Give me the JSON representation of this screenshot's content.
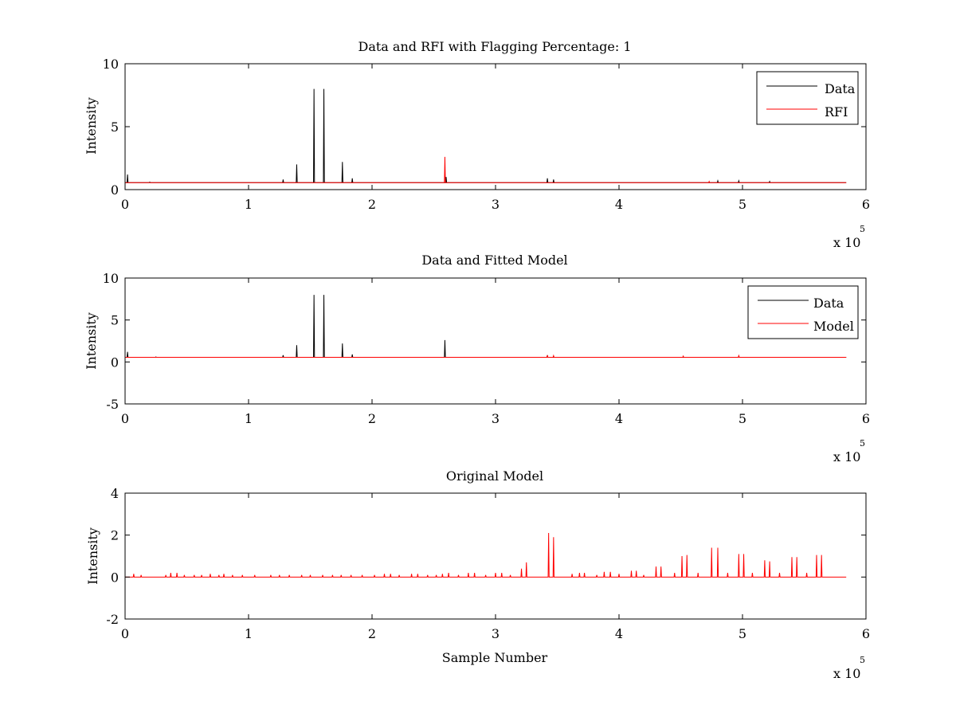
{
  "chart_data": [
    {
      "type": "line",
      "title": "Data and RFI with Flagging Percentage: 1",
      "xlabel": "",
      "ylabel": "Intensity",
      "xlim": [
        0,
        6
      ],
      "ylim": [
        0,
        10
      ],
      "xticks": [
        0,
        1,
        2,
        3,
        4,
        5,
        6
      ],
      "yticks": [
        0,
        5,
        10
      ],
      "x_exponent": {
        "base": "x 10",
        "power": "5"
      },
      "legend_position": "top-right",
      "grid": false,
      "baseline": 0.55,
      "x_end": 5.84,
      "series": [
        {
          "name": "Data",
          "color": "#000000",
          "spikes": [
            [
              0.02,
              1.2
            ],
            [
              0.2,
              0.6
            ],
            [
              0.25,
              0.55
            ],
            [
              1.28,
              0.8
            ],
            [
              1.39,
              2.0
            ],
            [
              1.53,
              8.0
            ],
            [
              1.61,
              8.0
            ],
            [
              1.76,
              2.2
            ],
            [
              1.84,
              0.9
            ],
            [
              2.6,
              1.0
            ],
            [
              3.42,
              0.9
            ],
            [
              3.47,
              0.8
            ],
            [
              4.8,
              0.7
            ],
            [
              4.97,
              0.7
            ],
            [
              5.22,
              0.65
            ]
          ]
        },
        {
          "name": "RFI",
          "color": "#ff0000",
          "spikes": [
            [
              2.59,
              2.6
            ],
            [
              4.73,
              0.65
            ]
          ]
        }
      ]
    },
    {
      "type": "line",
      "title": "Data and Fitted Model",
      "xlabel": "",
      "ylabel": "Intensity",
      "xlim": [
        0,
        6
      ],
      "ylim": [
        -5,
        10
      ],
      "xticks": [
        0,
        1,
        2,
        3,
        4,
        5,
        6
      ],
      "yticks": [
        -5,
        0,
        5,
        10
      ],
      "x_exponent": {
        "base": "x 10",
        "power": "5"
      },
      "legend_position": "top-right",
      "grid": false,
      "baseline": 0.55,
      "x_end": 5.84,
      "series": [
        {
          "name": "Data",
          "color": "#000000",
          "spikes": [
            [
              0.02,
              1.2
            ],
            [
              0.25,
              0.6
            ],
            [
              1.28,
              0.8
            ],
            [
              1.39,
              2.0
            ],
            [
              1.53,
              8.0
            ],
            [
              1.61,
              8.0
            ],
            [
              1.76,
              2.2
            ],
            [
              1.84,
              0.9
            ],
            [
              2.59,
              2.6
            ],
            [
              3.42,
              0.8
            ],
            [
              4.97,
              0.7
            ]
          ]
        },
        {
          "name": "Model",
          "color": "#ff0000",
          "spikes": [
            [
              3.42,
              0.8
            ],
            [
              3.47,
              0.75
            ],
            [
              4.52,
              0.7
            ],
            [
              4.97,
              0.75
            ]
          ]
        }
      ]
    },
    {
      "type": "line",
      "title": "Original Model",
      "xlabel": "Sample Number",
      "ylabel": "Intensity",
      "xlim": [
        0,
        6
      ],
      "ylim": [
        -2,
        4
      ],
      "xticks": [
        0,
        1,
        2,
        3,
        4,
        5,
        6
      ],
      "yticks": [
        -2,
        0,
        2,
        4
      ],
      "x_exponent": {
        "base": "x 10",
        "power": "5"
      },
      "grid": false,
      "baseline": 0,
      "x_end": 5.84,
      "series": [
        {
          "color": "#ff0000",
          "spikes": [
            [
              0.07,
              0.15
            ],
            [
              0.13,
              0.1
            ],
            [
              0.33,
              0.1
            ],
            [
              0.37,
              0.2
            ],
            [
              0.42,
              0.2
            ],
            [
              0.48,
              0.1
            ],
            [
              0.56,
              0.1
            ],
            [
              0.62,
              0.1
            ],
            [
              0.69,
              0.15
            ],
            [
              0.76,
              0.1
            ],
            [
              0.8,
              0.15
            ],
            [
              0.87,
              0.1
            ],
            [
              0.95,
              0.1
            ],
            [
              1.05,
              0.1
            ],
            [
              1.18,
              0.1
            ],
            [
              1.25,
              0.1
            ],
            [
              1.33,
              0.1
            ],
            [
              1.43,
              0.1
            ],
            [
              1.5,
              0.1
            ],
            [
              1.6,
              0.1
            ],
            [
              1.68,
              0.1
            ],
            [
              1.75,
              0.1
            ],
            [
              1.83,
              0.1
            ],
            [
              1.92,
              0.1
            ],
            [
              2.02,
              0.1
            ],
            [
              2.1,
              0.15
            ],
            [
              2.15,
              0.15
            ],
            [
              2.22,
              0.1
            ],
            [
              2.32,
              0.15
            ],
            [
              2.37,
              0.15
            ],
            [
              2.45,
              0.1
            ],
            [
              2.52,
              0.1
            ],
            [
              2.57,
              0.15
            ],
            [
              2.62,
              0.2
            ],
            [
              2.7,
              0.1
            ],
            [
              2.78,
              0.2
            ],
            [
              2.83,
              0.2
            ],
            [
              2.92,
              0.1
            ],
            [
              3.0,
              0.2
            ],
            [
              3.05,
              0.2
            ],
            [
              3.12,
              0.1
            ],
            [
              3.21,
              0.4
            ],
            [
              3.25,
              0.7
            ],
            [
              3.43,
              2.1
            ],
            [
              3.47,
              1.9
            ],
            [
              3.62,
              0.15
            ],
            [
              3.68,
              0.2
            ],
            [
              3.72,
              0.2
            ],
            [
              3.82,
              0.1
            ],
            [
              3.88,
              0.25
            ],
            [
              3.93,
              0.25
            ],
            [
              4.0,
              0.15
            ],
            [
              4.1,
              0.3
            ],
            [
              4.14,
              0.3
            ],
            [
              4.2,
              0.1
            ],
            [
              4.3,
              0.5
            ],
            [
              4.34,
              0.5
            ],
            [
              4.45,
              0.2
            ],
            [
              4.51,
              1.0
            ],
            [
              4.55,
              1.05
            ],
            [
              4.64,
              0.2
            ],
            [
              4.75,
              1.4
            ],
            [
              4.8,
              1.4
            ],
            [
              4.88,
              0.2
            ],
            [
              4.97,
              1.1
            ],
            [
              5.01,
              1.1
            ],
            [
              5.08,
              0.2
            ],
            [
              5.18,
              0.8
            ],
            [
              5.22,
              0.75
            ],
            [
              5.3,
              0.2
            ],
            [
              5.4,
              0.95
            ],
            [
              5.44,
              0.95
            ],
            [
              5.52,
              0.2
            ],
            [
              5.6,
              1.05
            ],
            [
              5.64,
              1.05
            ]
          ]
        }
      ]
    }
  ]
}
